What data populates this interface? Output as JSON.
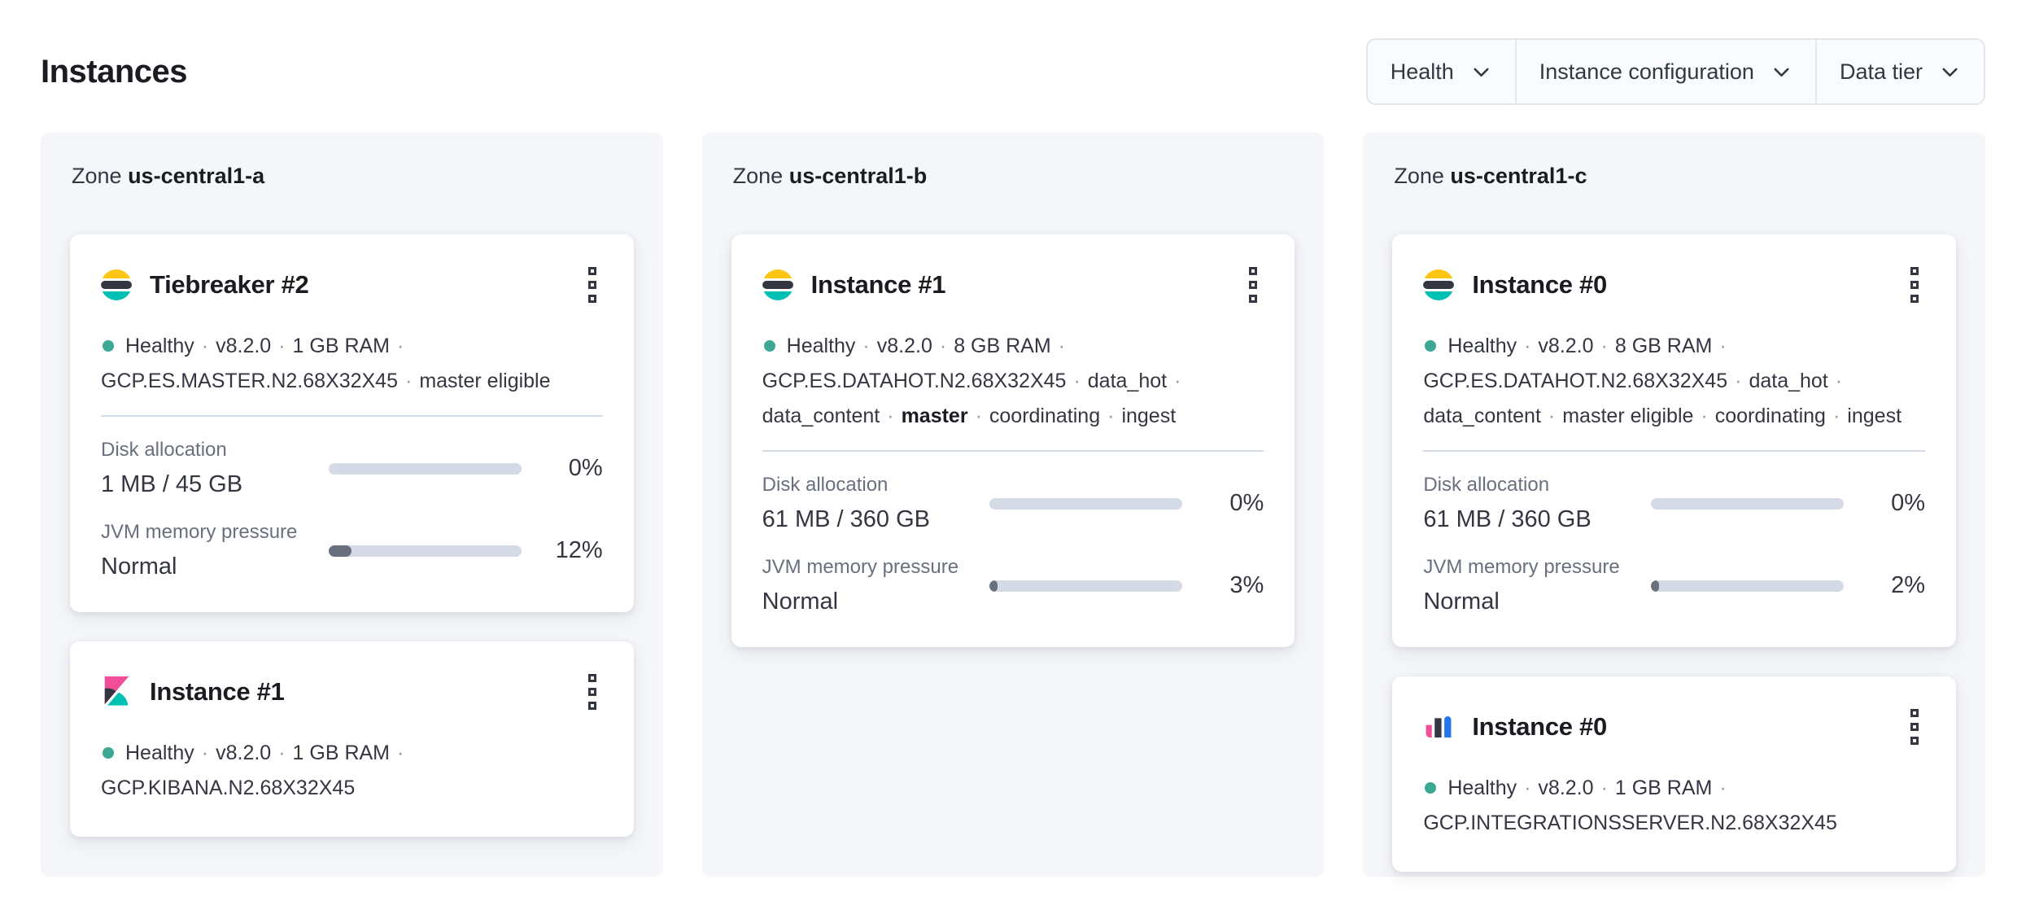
{
  "page": {
    "title": "Instances"
  },
  "filters": [
    {
      "label": "Health"
    },
    {
      "label": "Instance configuration"
    },
    {
      "label": "Data tier"
    }
  ],
  "colors": {
    "healthy_dot": "#3ca792",
    "progress_track": "#d5dbe6",
    "progress_fill": "#69707d",
    "logos": {
      "elasticsearch": {
        "top": "#fec514",
        "middle": "#343741",
        "bottom": "#00bfb3"
      },
      "kibana": {
        "top": "#f04e98",
        "left": "#343741",
        "bottom": "#00bfb3"
      },
      "integrations-server": {
        "left": "#f04e98",
        "middle": "#343741",
        "right": "#2575ee"
      }
    }
  },
  "zones": [
    {
      "label_prefix": "Zone",
      "name": "us-central1-a",
      "cards": [
        {
          "logo": "elasticsearch",
          "title": "Tiebreaker #2",
          "health_lines": [
            {
              "segments": [
                "Healthy",
                "v8.2.0",
                "1 GB RAM"
              ],
              "trailing_sep": true
            },
            {
              "segments": [
                "GCP.ES.MASTER.N2.68X32X45",
                "master eligible"
              ],
              "trailing_sep": false
            }
          ],
          "metrics": [
            {
              "label": "Disk allocation",
              "value": "1 MB / 45 GB",
              "percent": 0,
              "percent_label": "0%"
            },
            {
              "label": "JVM memory pressure",
              "value": "Normal",
              "percent": 12,
              "percent_label": "12%"
            }
          ]
        },
        {
          "logo": "kibana",
          "title": "Instance #1",
          "health_lines": [
            {
              "segments": [
                "Healthy",
                "v8.2.0",
                "1 GB RAM"
              ],
              "trailing_sep": true
            },
            {
              "segments": [
                "GCP.KIBANA.N2.68X32X45"
              ],
              "trailing_sep": false
            }
          ],
          "metrics": []
        }
      ]
    },
    {
      "label_prefix": "Zone",
      "name": "us-central1-b",
      "cards": [
        {
          "logo": "elasticsearch",
          "title": "Instance #1",
          "health_lines": [
            {
              "segments": [
                "Healthy",
                "v8.2.0",
                "8 GB RAM"
              ],
              "trailing_sep": true
            },
            {
              "segments": [
                "GCP.ES.DATAHOT.N2.68X32X45",
                "data_hot"
              ],
              "trailing_sep": true
            },
            {
              "segments": [
                "data_content",
                {
                  "text": "master",
                  "bold": true
                },
                "coordinating",
                "ingest"
              ],
              "trailing_sep": false
            }
          ],
          "metrics": [
            {
              "label": "Disk allocation",
              "value": "61 MB / 360 GB",
              "percent": 0,
              "percent_label": "0%"
            },
            {
              "label": "JVM memory pressure",
              "value": "Normal",
              "percent": 3,
              "percent_label": "3%"
            }
          ]
        }
      ]
    },
    {
      "label_prefix": "Zone",
      "name": "us-central1-c",
      "cards": [
        {
          "logo": "elasticsearch",
          "title": "Instance #0",
          "health_lines": [
            {
              "segments": [
                "Healthy",
                "v8.2.0",
                "8 GB RAM"
              ],
              "trailing_sep": true
            },
            {
              "segments": [
                "GCP.ES.DATAHOT.N2.68X32X45",
                "data_hot"
              ],
              "trailing_sep": true
            },
            {
              "segments": [
                "data_content",
                "master eligible",
                "coordinating",
                "ingest"
              ],
              "trailing_sep": false
            }
          ],
          "metrics": [
            {
              "label": "Disk allocation",
              "value": "61 MB / 360 GB",
              "percent": 0,
              "percent_label": "0%"
            },
            {
              "label": "JVM memory pressure",
              "value": "Normal",
              "percent": 2,
              "percent_label": "2%"
            }
          ]
        },
        {
          "logo": "integrations-server",
          "title": "Instance #0",
          "health_lines": [
            {
              "segments": [
                "Healthy",
                "v8.2.0",
                "1 GB RAM"
              ],
              "trailing_sep": true
            },
            {
              "segments": [
                "GCP.INTEGRATIONSSERVER.N2.68X32X45"
              ],
              "trailing_sep": false
            }
          ],
          "metrics": []
        }
      ]
    }
  ]
}
